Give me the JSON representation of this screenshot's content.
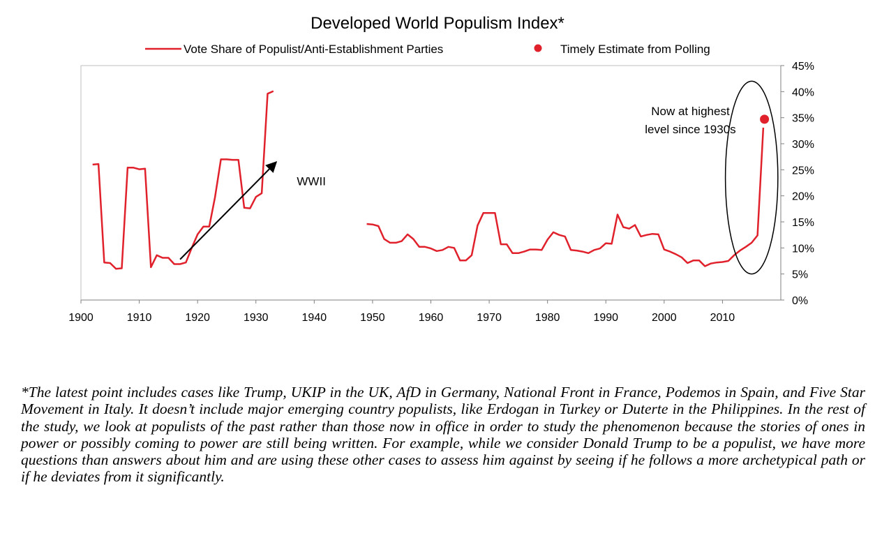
{
  "chart_data": {
    "type": "line",
    "title": "Developed World Populism Index*",
    "xlabel": "",
    "ylabel": "",
    "xlim": [
      1900,
      2020
    ],
    "ylim": [
      0,
      45
    ],
    "x_ticks": [
      "1900",
      "1910",
      "1920",
      "1930",
      "1940",
      "1950",
      "1960",
      "1970",
      "1980",
      "1990",
      "2000",
      "2010"
    ],
    "y_ticks": [
      "0%",
      "5%",
      "10%",
      "15%",
      "20%",
      "25%",
      "30%",
      "35%",
      "40%",
      "45%"
    ],
    "grid": false,
    "legend_position": "top",
    "series": [
      {
        "name": "Vote Share of Populist/Anti-Establishment Parties",
        "color": "#e0212b",
        "segments": [
          [
            [
              1902,
              26.0
            ],
            [
              1903,
              26.1
            ],
            [
              1904,
              7.2
            ],
            [
              1905,
              7.1
            ],
            [
              1906,
              6.0
            ],
            [
              1907,
              6.1
            ],
            [
              1908,
              25.4
            ],
            [
              1909,
              25.4
            ],
            [
              1910,
              25.1
            ],
            [
              1911,
              25.2
            ],
            [
              1912,
              6.3
            ],
            [
              1913,
              8.6
            ],
            [
              1914,
              8.1
            ],
            [
              1915,
              8.1
            ],
            [
              1916,
              6.9
            ],
            [
              1917,
              6.9
            ],
            [
              1918,
              7.2
            ],
            [
              1919,
              10.0
            ],
            [
              1920,
              12.6
            ],
            [
              1921,
              14.1
            ],
            [
              1922,
              14.1
            ],
            [
              1923,
              19.8
            ],
            [
              1924,
              27.0
            ],
            [
              1925,
              27.0
            ],
            [
              1926,
              26.9
            ],
            [
              1927,
              26.9
            ],
            [
              1928,
              17.7
            ],
            [
              1929,
              17.6
            ],
            [
              1930,
              19.8
            ],
            [
              1931,
              20.5
            ],
            [
              1932,
              39.6
            ],
            [
              1933,
              40.1
            ]
          ],
          [
            [
              1949,
              14.6
            ],
            [
              1950,
              14.5
            ],
            [
              1951,
              14.2
            ],
            [
              1952,
              11.7
            ],
            [
              1953,
              11.0
            ],
            [
              1954,
              11.0
            ],
            [
              1955,
              11.3
            ],
            [
              1956,
              12.6
            ],
            [
              1957,
              11.7
            ],
            [
              1958,
              10.2
            ],
            [
              1959,
              10.2
            ],
            [
              1960,
              9.9
            ],
            [
              1961,
              9.4
            ],
            [
              1962,
              9.6
            ],
            [
              1963,
              10.2
            ],
            [
              1964,
              10.0
            ],
            [
              1965,
              7.6
            ],
            [
              1966,
              7.6
            ],
            [
              1967,
              8.6
            ],
            [
              1968,
              14.3
            ],
            [
              1969,
              16.7
            ],
            [
              1970,
              16.7
            ],
            [
              1971,
              16.7
            ],
            [
              1972,
              10.7
            ],
            [
              1973,
              10.7
            ],
            [
              1974,
              9.0
            ],
            [
              1975,
              9.0
            ],
            [
              1976,
              9.3
            ],
            [
              1977,
              9.7
            ],
            [
              1978,
              9.7
            ],
            [
              1979,
              9.6
            ],
            [
              1980,
              11.6
            ],
            [
              1981,
              13.0
            ],
            [
              1982,
              12.5
            ],
            [
              1983,
              12.2
            ],
            [
              1984,
              9.6
            ],
            [
              1985,
              9.5
            ],
            [
              1986,
              9.3
            ],
            [
              1987,
              9.0
            ],
            [
              1988,
              9.6
            ],
            [
              1989,
              9.9
            ],
            [
              1990,
              10.9
            ],
            [
              1991,
              10.8
            ],
            [
              1992,
              16.4
            ],
            [
              1993,
              14.0
            ],
            [
              1994,
              13.7
            ],
            [
              1995,
              14.4
            ],
            [
              1996,
              12.2
            ],
            [
              1997,
              12.5
            ],
            [
              1998,
              12.7
            ],
            [
              1999,
              12.6
            ],
            [
              2000,
              9.7
            ],
            [
              2001,
              9.3
            ],
            [
              2002,
              8.8
            ],
            [
              2003,
              8.2
            ],
            [
              2004,
              7.1
            ],
            [
              2005,
              7.6
            ],
            [
              2006,
              7.6
            ],
            [
              2007,
              6.5
            ],
            [
              2008,
              7.0
            ],
            [
              2009,
              7.2
            ],
            [
              2010,
              7.3
            ],
            [
              2011,
              7.5
            ],
            [
              2012,
              8.6
            ],
            [
              2013,
              9.5
            ],
            [
              2014,
              10.2
            ],
            [
              2015,
              11.0
            ],
            [
              2016,
              12.4
            ],
            [
              2017,
              33.1
            ]
          ]
        ]
      },
      {
        "name": "Timely Estimate from Polling",
        "color": "#e0212b",
        "type": "scatter",
        "points": [
          [
            2017.2,
            34.7
          ]
        ]
      }
    ],
    "annotations": [
      {
        "text": "WWII",
        "x": 1939.5,
        "y": 22.0
      },
      {
        "text_lines": [
          "Now at highest",
          "level since 1930s"
        ],
        "x": 2004.5,
        "y": 35.5
      }
    ],
    "arrow": {
      "from": [
        1917,
        7.8
      ],
      "to": [
        1933.5,
        26.5
      ],
      "color": "#000000"
    },
    "ellipse": {
      "cx": 2015.0,
      "cy": 23.5,
      "rx": 4.5,
      "ry": 18.5,
      "color": "#000000"
    }
  },
  "footnote": "*The latest point includes cases like Trump, UKIP in the UK, AfD in Germany, National Front in France, Podemos in Spain, and Five Star Movement in Italy. It doesn’t include major emerging country populists, like Erdogan in Turkey or Duterte in the Philippines. In the rest of the study, we look at populists of the past rather than those now in office in order to study the phenomenon because the stories of ones in power or possibly coming to power are still being written.  For example, while we consider Donald Trump to be a populist, we have more questions than answers about him and are using these other cases to assess him against by seeing if he follows a more archetypical path or if he deviates from it significantly."
}
